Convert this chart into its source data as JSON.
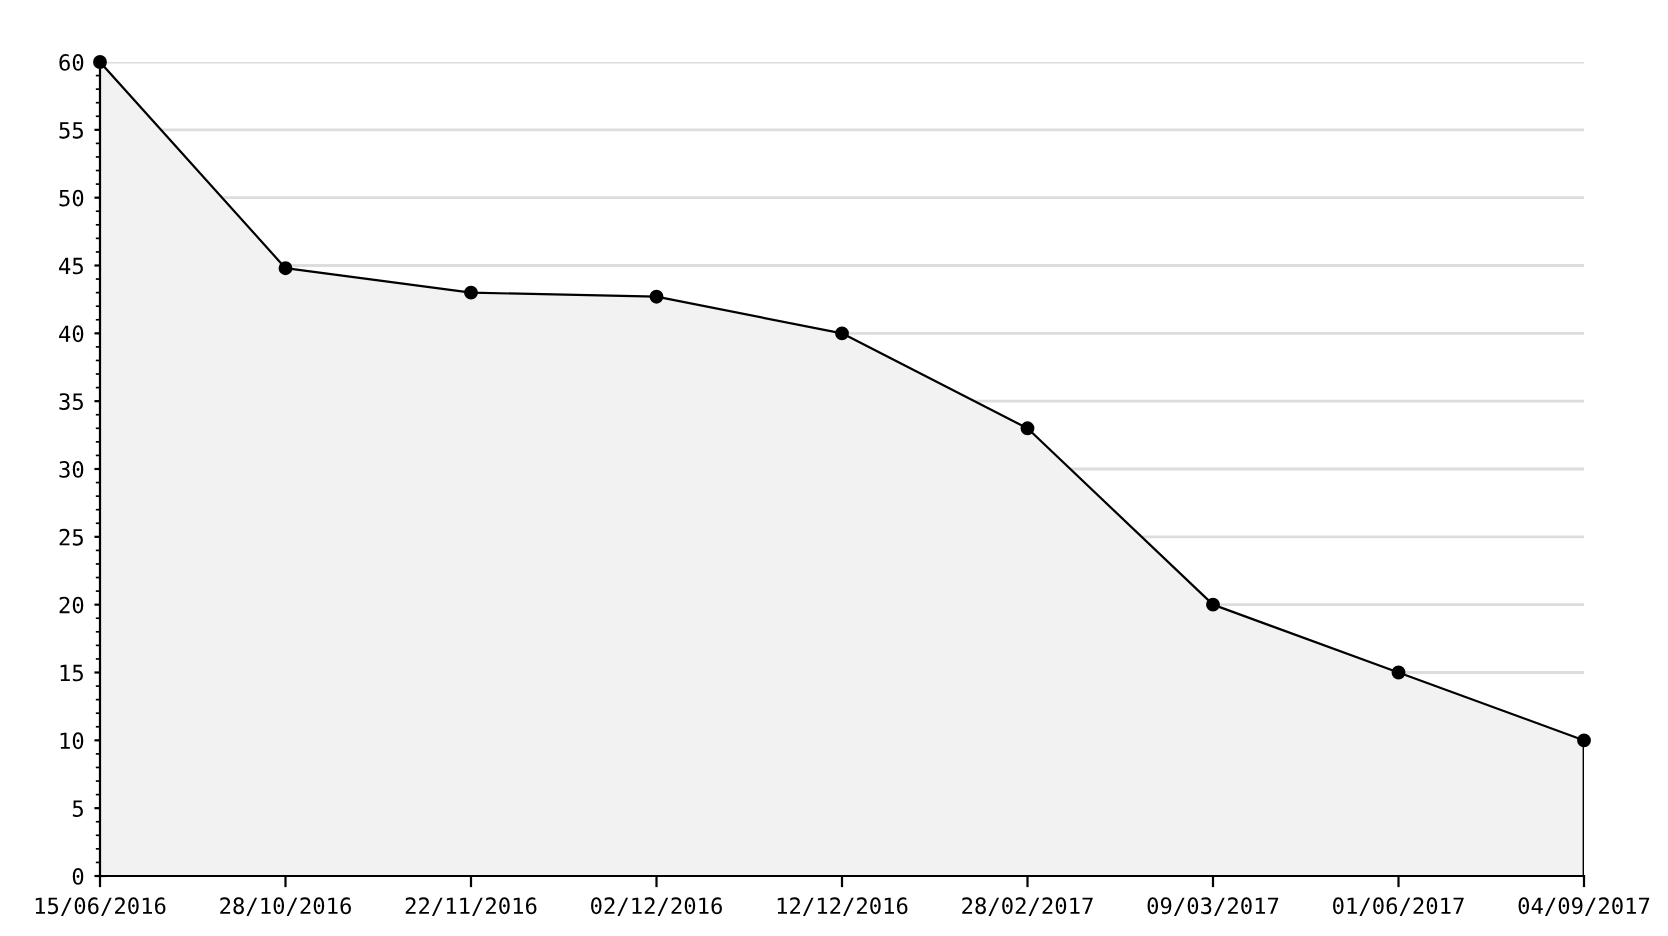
{
  "chart_data": {
    "type": "area",
    "categories": [
      "15/06/2016",
      "28/10/2016",
      "22/11/2016",
      "02/12/2016",
      "12/12/2016",
      "28/02/2017",
      "09/03/2017",
      "01/06/2017",
      "04/09/2017"
    ],
    "series": [
      {
        "color": "#000000",
        "values": [
          60,
          44.8,
          43,
          42.7,
          40,
          33,
          20,
          15,
          10
        ]
      }
    ],
    "ylim": [
      0,
      60
    ],
    "yticks": [
      0,
      5,
      10,
      15,
      20,
      25,
      30,
      35,
      40,
      45,
      50,
      55,
      60
    ],
    "grid": "y",
    "marker": "circle",
    "line_style": "solid",
    "legend": false
  }
}
